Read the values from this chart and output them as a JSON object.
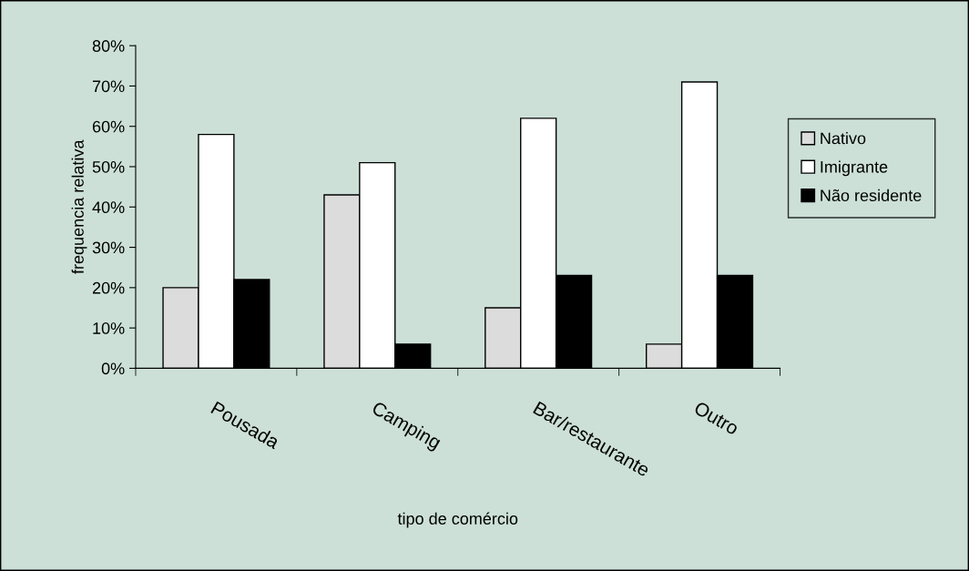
{
  "chart_data": {
    "type": "bar",
    "xlabel": "tipo de comércio",
    "ylabel": "frequencia relativa",
    "categories": [
      "Pousada",
      "Camping",
      "Bar/restaurante",
      "Outro"
    ],
    "series": [
      {
        "name": "Nativo",
        "color": "#dcdcdc",
        "values": [
          20,
          43,
          15,
          6
        ]
      },
      {
        "name": "Imigrante",
        "color": "#ffffff",
        "values": [
          58,
          51,
          62,
          71
        ]
      },
      {
        "name": "Não residente",
        "color": "#000000",
        "values": [
          22,
          6,
          23,
          23
        ]
      }
    ],
    "ylim": [
      0,
      80
    ],
    "yticks": [
      {
        "value": 0,
        "label": "0%"
      },
      {
        "value": 10,
        "label": "10%"
      },
      {
        "value": 20,
        "label": "20%"
      },
      {
        "value": 30,
        "label": "30%"
      },
      {
        "value": 40,
        "label": "40%"
      },
      {
        "value": 50,
        "label": "50%"
      },
      {
        "value": 60,
        "label": "60%"
      },
      {
        "value": 70,
        "label": "70%"
      },
      {
        "value": 80,
        "label": "80%"
      }
    ],
    "grid": false,
    "legend": "right"
  }
}
